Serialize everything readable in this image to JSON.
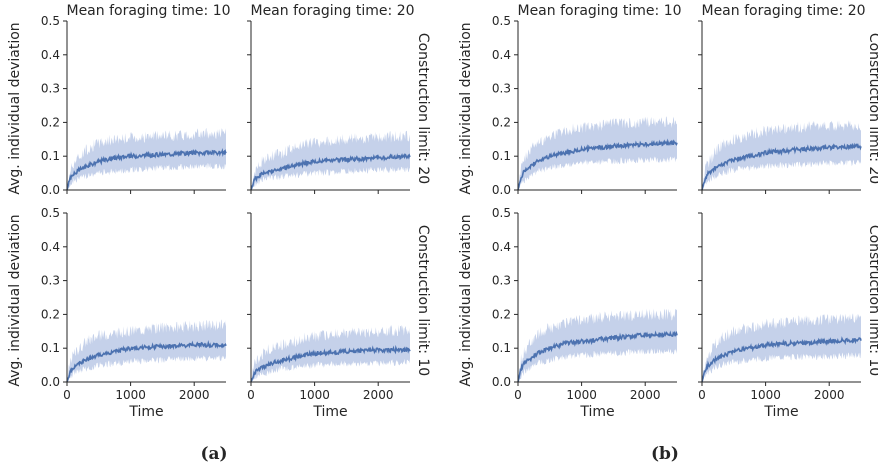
{
  "chart_data": {
    "type": "line",
    "layout": "2 figures, each a 2x2 facet grid of line plots with shaded variability bands",
    "colors": {
      "line": "#4c72b0",
      "band": "#c5d1ea"
    },
    "ylim": [
      0,
      0.5
    ],
    "xlim": [
      0,
      2500
    ],
    "yticks": [
      "0.0",
      "0.1",
      "0.2",
      "0.3",
      "0.4",
      "0.5"
    ],
    "xticks": [
      "0",
      "1000",
      "2000"
    ],
    "ytick_values": [
      0,
      0.1,
      0.2,
      0.3,
      0.4,
      0.5
    ],
    "xtick_values": [
      0,
      1000,
      2000
    ],
    "xlabel": "Time",
    "ylabel": "Avg. individual deviation",
    "col_titles": [
      "Mean foraging time: 10",
      "Mean foraging time: 20"
    ],
    "row_titles": [
      "Construction limit: 20",
      "Construction limit: 10"
    ],
    "subfigures": [
      {
        "label": "(a)",
        "panels": [
          {
            "row": 0,
            "col": 0,
            "x": [
              0,
              50,
              100,
              200,
              300,
              500,
              750,
              1000,
              1500,
              2000,
              2500
            ],
            "mean": [
              0.0,
              0.035,
              0.045,
              0.06,
              0.07,
              0.085,
              0.095,
              0.1,
              0.105,
              0.11,
              0.11
            ],
            "band_low": [
              0.0,
              0.02,
              0.025,
              0.035,
              0.04,
              0.05,
              0.055,
              0.06,
              0.065,
              0.07,
              0.07
            ],
            "band_high": [
              0.0,
              0.06,
              0.08,
              0.1,
              0.12,
              0.14,
              0.15,
              0.155,
              0.16,
              0.165,
              0.17
            ]
          },
          {
            "row": 0,
            "col": 1,
            "x": [
              0,
              50,
              100,
              200,
              300,
              500,
              750,
              1000,
              1500,
              2000,
              2500
            ],
            "mean": [
              0.0,
              0.03,
              0.04,
              0.05,
              0.055,
              0.065,
              0.075,
              0.085,
              0.09,
              0.095,
              0.1
            ],
            "band_low": [
              0.0,
              0.015,
              0.02,
              0.03,
              0.035,
              0.04,
              0.045,
              0.05,
              0.055,
              0.06,
              0.06
            ],
            "band_high": [
              0.0,
              0.05,
              0.07,
              0.09,
              0.1,
              0.11,
              0.13,
              0.14,
              0.15,
              0.155,
              0.16
            ]
          },
          {
            "row": 1,
            "col": 0,
            "x": [
              0,
              50,
              100,
              200,
              300,
              500,
              750,
              1000,
              1500,
              2000,
              2500
            ],
            "mean": [
              0.0,
              0.03,
              0.04,
              0.055,
              0.065,
              0.08,
              0.09,
              0.1,
              0.105,
              0.11,
              0.11
            ],
            "band_low": [
              0.0,
              0.015,
              0.025,
              0.035,
              0.04,
              0.05,
              0.055,
              0.06,
              0.065,
              0.07,
              0.07
            ],
            "band_high": [
              0.0,
              0.06,
              0.08,
              0.1,
              0.12,
              0.135,
              0.145,
              0.15,
              0.16,
              0.165,
              0.17
            ]
          },
          {
            "row": 1,
            "col": 1,
            "x": [
              0,
              50,
              100,
              200,
              300,
              500,
              750,
              1000,
              1500,
              2000,
              2500
            ],
            "mean": [
              0.0,
              0.025,
              0.035,
              0.045,
              0.055,
              0.065,
              0.075,
              0.085,
              0.09,
              0.095,
              0.095
            ],
            "band_low": [
              0.0,
              0.01,
              0.02,
              0.025,
              0.03,
              0.04,
              0.045,
              0.05,
              0.055,
              0.055,
              0.06
            ],
            "band_high": [
              0.0,
              0.05,
              0.065,
              0.085,
              0.1,
              0.11,
              0.125,
              0.135,
              0.145,
              0.15,
              0.155
            ]
          }
        ]
      },
      {
        "label": "(b)",
        "panels": [
          {
            "row": 0,
            "col": 0,
            "x": [
              0,
              50,
              100,
              200,
              300,
              500,
              750,
              1000,
              1500,
              2000,
              2500
            ],
            "mean": [
              0.0,
              0.04,
              0.055,
              0.07,
              0.085,
              0.1,
              0.11,
              0.12,
              0.13,
              0.135,
              0.14
            ],
            "band_low": [
              0.0,
              0.02,
              0.03,
              0.045,
              0.055,
              0.065,
              0.075,
              0.08,
              0.085,
              0.09,
              0.09
            ],
            "band_high": [
              0.0,
              0.07,
              0.09,
              0.12,
              0.14,
              0.16,
              0.175,
              0.185,
              0.195,
              0.2,
              0.2
            ]
          },
          {
            "row": 0,
            "col": 1,
            "x": [
              0,
              50,
              100,
              200,
              300,
              500,
              750,
              1000,
              1500,
              2000,
              2500
            ],
            "mean": [
              0.0,
              0.035,
              0.05,
              0.065,
              0.075,
              0.09,
              0.1,
              0.11,
              0.12,
              0.125,
              0.13
            ],
            "band_low": [
              0.0,
              0.02,
              0.03,
              0.04,
              0.05,
              0.06,
              0.065,
              0.07,
              0.075,
              0.08,
              0.08
            ],
            "band_high": [
              0.0,
              0.06,
              0.08,
              0.11,
              0.13,
              0.15,
              0.165,
              0.175,
              0.185,
              0.19,
              0.19
            ]
          },
          {
            "row": 1,
            "col": 0,
            "x": [
              0,
              50,
              100,
              200,
              300,
              500,
              750,
              1000,
              1500,
              2000,
              2500
            ],
            "mean": [
              0.0,
              0.04,
              0.055,
              0.07,
              0.085,
              0.1,
              0.115,
              0.12,
              0.13,
              0.14,
              0.14
            ],
            "band_low": [
              0.0,
              0.02,
              0.03,
              0.045,
              0.055,
              0.065,
              0.075,
              0.08,
              0.085,
              0.09,
              0.09
            ],
            "band_high": [
              0.0,
              0.07,
              0.09,
              0.12,
              0.14,
              0.16,
              0.175,
              0.185,
              0.195,
              0.2,
              0.2
            ]
          },
          {
            "row": 1,
            "col": 1,
            "x": [
              0,
              50,
              100,
              200,
              300,
              500,
              750,
              1000,
              1500,
              2000,
              2500
            ],
            "mean": [
              0.0,
              0.035,
              0.05,
              0.065,
              0.075,
              0.09,
              0.1,
              0.11,
              0.115,
              0.12,
              0.125
            ],
            "band_low": [
              0.0,
              0.02,
              0.03,
              0.04,
              0.05,
              0.06,
              0.065,
              0.07,
              0.075,
              0.075,
              0.08
            ],
            "band_high": [
              0.0,
              0.06,
              0.08,
              0.11,
              0.13,
              0.15,
              0.16,
              0.17,
              0.18,
              0.185,
              0.19
            ]
          }
        ]
      }
    ]
  }
}
